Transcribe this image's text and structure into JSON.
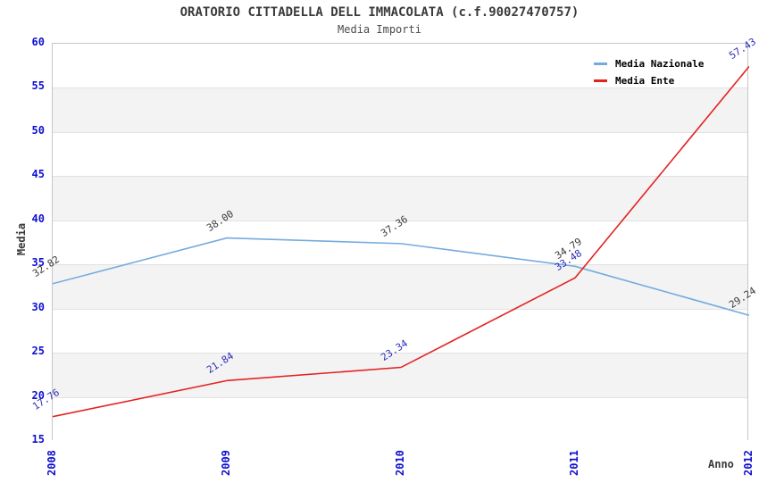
{
  "title": "ORATORIO CITTADELLA DELL IMMACOLATA (c.f.90027470757)",
  "subtitle": "Media Importi",
  "chart_data": {
    "type": "line",
    "categories": [
      "2008",
      "2009",
      "2010",
      "2011",
      "2012"
    ],
    "series": [
      {
        "name": "Media Nazionale",
        "values": [
          32.82,
          38.0,
          37.36,
          34.79,
          29.24
        ],
        "point_labels": [
          "32.82",
          "38.00",
          "37.36",
          "34.79",
          "29.24"
        ],
        "color": "#74abdf",
        "label_color": "#3a3a3a"
      },
      {
        "name": "Media Ente",
        "values": [
          17.76,
          21.84,
          23.34,
          33.48,
          57.43
        ],
        "point_labels": [
          "17.76",
          "21.84",
          "23.34",
          "33.48",
          "57.43"
        ],
        "color": "#e32222",
        "label_color": "#2e2eb8"
      }
    ],
    "xlabel": "Anno",
    "ylabel": "Media",
    "ylim": [
      15,
      60
    ],
    "yticks": [
      15,
      20,
      25,
      30,
      35,
      40,
      45,
      50,
      55,
      60
    ],
    "tick_color": "#0f0fd0",
    "band_color": "#f3f3f3",
    "grid": "horizontal-bands",
    "legend_position": "top-right"
  }
}
